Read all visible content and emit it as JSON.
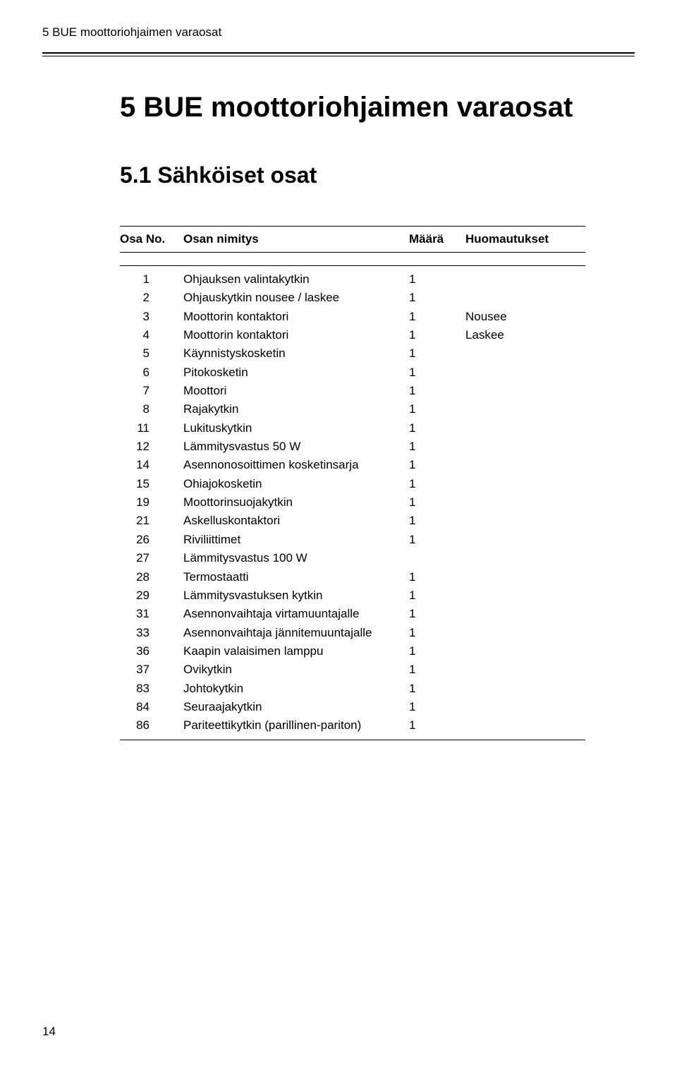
{
  "running_head": "5 BUE  moottoriohjaimen varaosat",
  "h1": "5  BUE  moottoriohjaimen varaosat",
  "h2": "5.1  Sähköiset osat",
  "table": {
    "header": {
      "no": "Osa No.",
      "name": "Osan nimitys",
      "qty": "Määrä",
      "note": "Huomautukset"
    },
    "rows": [
      {
        "no": "1",
        "name": "Ohjauksen valintakytkin",
        "qty": "1",
        "note": ""
      },
      {
        "no": "2",
        "name": "Ohjauskytkin nousee / laskee",
        "qty": "1",
        "note": ""
      },
      {
        "no": "3",
        "name": "Moottorin kontaktori",
        "qty": "1",
        "note": "Nousee"
      },
      {
        "no": "4",
        "name": "Moottorin kontaktori",
        "qty": "1",
        "note": "Laskee"
      },
      {
        "no": "5",
        "name": "Käynnistyskosketin",
        "qty": "1",
        "note": ""
      },
      {
        "no": "6",
        "name": "Pitokosketin",
        "qty": "1",
        "note": ""
      },
      {
        "no": "7",
        "name": "Moottori",
        "qty": "1",
        "note": ""
      },
      {
        "no": "8",
        "name": "Rajakytkin",
        "qty": "1",
        "note": ""
      },
      {
        "no": "11",
        "name": "Lukituskytkin",
        "qty": "1",
        "note": ""
      },
      {
        "no": "12",
        "name": "Lämmitysvastus 50 W",
        "qty": "1",
        "note": ""
      },
      {
        "no": "14",
        "name": "Asennonosoittimen kosketinsarja",
        "qty": "1",
        "note": ""
      },
      {
        "no": "15",
        "name": "Ohiajokosketin",
        "qty": "1",
        "note": ""
      },
      {
        "no": "19",
        "name": "Moottorinsuojakytkin",
        "qty": "1",
        "note": ""
      },
      {
        "no": "21",
        "name": "Askelluskontaktori",
        "qty": "1",
        "note": ""
      },
      {
        "no": "26",
        "name": "Riviliittimet",
        "qty": "1",
        "note": ""
      },
      {
        "no": "27",
        "name": "Lämmitysvastus 100 W",
        "qty": "",
        "note": ""
      },
      {
        "no": "28",
        "name": "Termostaatti",
        "qty": "1",
        "note": ""
      },
      {
        "no": "29",
        "name": "Lämmitysvastuksen kytkin",
        "qty": "1",
        "note": ""
      },
      {
        "no": "31",
        "name": "Asennonvaihtaja virtamuuntajalle",
        "qty": "1",
        "note": ""
      },
      {
        "no": "33",
        "name": "Asennonvaihtaja jännitemuuntajalle",
        "qty": "1",
        "note": ""
      },
      {
        "no": "36",
        "name": "Kaapin valaisimen lamppu",
        "qty": "1",
        "note": ""
      },
      {
        "no": "37",
        "name": "Ovikytkin",
        "qty": "1",
        "note": ""
      },
      {
        "no": "83",
        "name": "Johtokytkin",
        "qty": "1",
        "note": ""
      },
      {
        "no": "84",
        "name": "Seuraajakytkin",
        "qty": "1",
        "note": ""
      },
      {
        "no": "86",
        "name": "Pariteettikytkin (parillinen-pariton)",
        "qty": "1",
        "note": ""
      }
    ]
  },
  "page_number": "14"
}
